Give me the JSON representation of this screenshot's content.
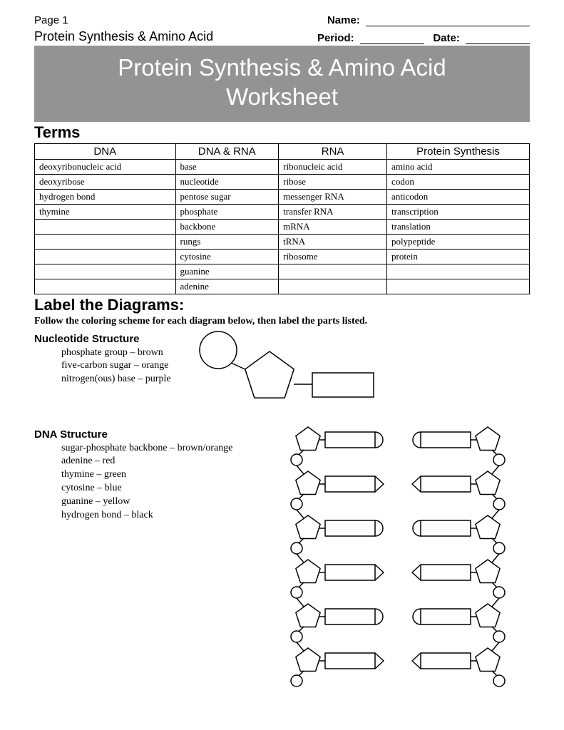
{
  "header": {
    "page": "Page 1",
    "name_label": "Name:",
    "subtitle": "Protein Synthesis & Amino Acid",
    "period_label": "Period:",
    "date_label": "Date:"
  },
  "banner": {
    "line1": "Protein Synthesis & Amino Acid",
    "line2": "Worksheet"
  },
  "terms": {
    "heading": "Terms",
    "columns": [
      "DNA",
      "DNA & RNA",
      "RNA",
      "Protein Synthesis"
    ],
    "rows": [
      [
        "deoxyribonucleic acid",
        "base",
        "ribonucleic acid",
        "amino acid"
      ],
      [
        "deoxyribose",
        "nucleotide",
        "ribose",
        "codon"
      ],
      [
        "hydrogen bond",
        "pentose sugar",
        "messenger RNA",
        "anticodon"
      ],
      [
        "thymine",
        "phosphate",
        "transfer RNA",
        "transcription"
      ],
      [
        "",
        "backbone",
        "mRNA",
        "translation"
      ],
      [
        "",
        "rungs",
        "tRNA",
        "polypeptide"
      ],
      [
        "",
        "cytosine",
        "ribosome",
        "protein"
      ],
      [
        "",
        "guanine",
        "",
        ""
      ],
      [
        "",
        "adenine",
        "",
        ""
      ]
    ]
  },
  "label_section": {
    "heading": "Label the Diagrams:",
    "instructions": "Follow the coloring scheme for each diagram below, then label the parts listed."
  },
  "nucleotide": {
    "heading": "Nucleotide Structure",
    "items": [
      "phosphate group – brown",
      "five-carbon sugar – orange",
      "nitrogen(ous) base – purple"
    ],
    "diagram": {
      "stroke": "#000000",
      "fill": "#ffffff",
      "stroke_width": 1.5
    }
  },
  "dna": {
    "heading": "DNA Structure",
    "items": [
      "sugar-phosphate backbone – brown/orange",
      "adenine – red",
      "thymine – green",
      "cytosine – blue",
      "guanine – yellow",
      "hydrogen bond – black"
    ],
    "diagram": {
      "stroke": "#000000",
      "fill": "#ffffff",
      "stroke_width": 1.5,
      "rungs": 6
    }
  }
}
